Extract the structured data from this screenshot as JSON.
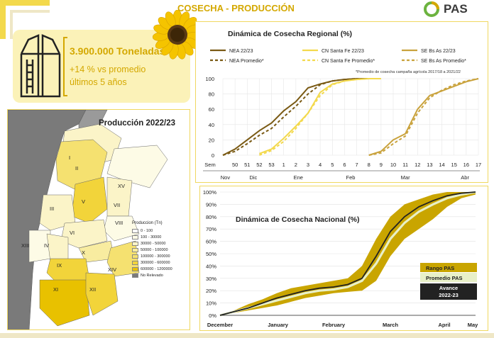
{
  "header": {
    "title": "COSECHA - PRODUCCIÓN",
    "logo_text": "PAS"
  },
  "colors": {
    "brand_yellow": "#d4a800",
    "dark_brown": "#7a5a14",
    "light_yellow": "#f3d94c",
    "mid_gold": "#c9a23c",
    "rango_fill": "#c9a500",
    "promedio_line": "#e8f0c8",
    "avance_line": "#222222"
  },
  "summary": {
    "tonnage": "3.900.000 Toneladas",
    "vs_average_line1": "+14 % vs promedio",
    "vs_average_line2": "últimos 5 años"
  },
  "map": {
    "title": "Producción 2022/23",
    "legend_title": "Produccion (Tn)",
    "legend": [
      {
        "label": "0 - 100",
        "color": "#ffffff"
      },
      {
        "label": "100 - 30000",
        "color": "#fdfbe6"
      },
      {
        "label": "30000 - 50000",
        "color": "#fbf4c8"
      },
      {
        "label": "50000 - 100000",
        "color": "#f8eca0"
      },
      {
        "label": "100000 - 300000",
        "color": "#f5e170"
      },
      {
        "label": "300000 - 600000",
        "color": "#f2d43a"
      },
      {
        "label": "600000 - 1200000",
        "color": "#e8c100"
      },
      {
        "label": "No Relevado",
        "color": "#7a7a7a"
      }
    ],
    "region_labels": [
      "II",
      "I",
      "XV",
      "V",
      "VII",
      "III",
      "VIII",
      "VI",
      "XIII",
      "IV",
      "X",
      "IX",
      "XIV",
      "XI",
      "XII"
    ]
  },
  "regional_chart": {
    "title": "Dinámica de Cosecha Regional (%)",
    "footnote": "*Promedio de cosecha campaña agrícola 2017/18 a 2021/22",
    "legend": [
      {
        "label": "NEA 22/23",
        "color": "#7a5a14",
        "dash": false
      },
      {
        "label": "CN Santa Fe 22/23",
        "color": "#f3d94c",
        "dash": false
      },
      {
        "label": "SE Bs As 22/23",
        "color": "#c9a23c",
        "dash": false
      },
      {
        "label": "NEA Promedio*",
        "color": "#7a5a14",
        "dash": true
      },
      {
        "label": "CN Santa Fe Promedio*",
        "color": "#f3d94c",
        "dash": true
      },
      {
        "label": "SE Bs As Promedio*",
        "color": "#c9a23c",
        "dash": true
      }
    ],
    "y_ticks": [
      "0",
      "20",
      "40",
      "60",
      "80",
      "100"
    ],
    "x_week_ticks": [
      "Sem",
      "50",
      "51",
      "52",
      "53",
      "1",
      "2",
      "3",
      "4",
      "5",
      "6",
      "7",
      "8",
      "9",
      "10",
      "11",
      "12",
      "13",
      "14",
      "15",
      "16",
      "17"
    ],
    "x_month_ticks": [
      "Nov",
      "Dic",
      "Ene",
      "Feb",
      "Mar",
      "Abr"
    ]
  },
  "chart_data": [
    {
      "type": "line",
      "title": "Dinámica de Cosecha Regional (%)",
      "xlabel": "Sem",
      "ylabel": "",
      "ylim": [
        0,
        100
      ],
      "x": [
        49,
        50,
        51,
        52,
        53,
        1,
        2,
        3,
        4,
        5,
        6,
        7,
        8,
        9,
        10,
        11,
        12,
        13,
        14,
        15,
        16,
        17
      ],
      "series": [
        {
          "name": "NEA 22/23",
          "values": [
            0,
            8,
            20,
            32,
            42,
            58,
            70,
            88,
            93,
            97,
            99,
            100,
            100,
            null,
            null,
            null,
            null,
            null,
            null,
            null,
            null,
            null
          ]
        },
        {
          "name": "NEA Promedio*",
          "values": [
            0,
            5,
            15,
            26,
            35,
            50,
            64,
            80,
            92,
            97,
            99,
            100,
            100,
            null,
            null,
            null,
            null,
            null,
            null,
            null,
            null,
            null
          ]
        },
        {
          "name": "CN Santa Fe 22/23",
          "values": [
            null,
            null,
            null,
            2,
            8,
            22,
            38,
            55,
            82,
            93,
            97,
            99,
            100,
            100,
            null,
            null,
            null,
            null,
            null,
            null,
            null,
            null
          ]
        },
        {
          "name": "CN Santa Fe Promedio*",
          "values": [
            null,
            null,
            null,
            0,
            6,
            18,
            35,
            55,
            78,
            92,
            97,
            99,
            100,
            100,
            null,
            null,
            null,
            null,
            null,
            null,
            null,
            null
          ]
        },
        {
          "name": "SE Bs As 22/23",
          "values": [
            null,
            null,
            null,
            null,
            null,
            null,
            null,
            null,
            null,
            null,
            null,
            null,
            0,
            5,
            20,
            28,
            60,
            78,
            84,
            90,
            96,
            100
          ]
        },
        {
          "name": "SE Bs As Promedio*",
          "values": [
            null,
            null,
            null,
            null,
            null,
            null,
            null,
            null,
            null,
            null,
            null,
            null,
            0,
            3,
            15,
            25,
            55,
            75,
            85,
            92,
            97,
            100
          ]
        }
      ]
    },
    {
      "type": "area",
      "title": "Dinámica de Cosecha Nacional (%)",
      "xlabel": "",
      "ylabel": "",
      "ylim": [
        0,
        100
      ],
      "categories": [
        "December",
        "January",
        "February",
        "March",
        "April",
        "May"
      ],
      "y_ticks": [
        "0%",
        "10%",
        "20%",
        "30%",
        "40%",
        "50%",
        "60%",
        "70%",
        "80%",
        "90%",
        "100%"
      ],
      "x": [
        0,
        0.25,
        0.5,
        0.75,
        1.0,
        1.25,
        1.5,
        1.75,
        2.0,
        2.25,
        2.5,
        2.75,
        3.0,
        3.25,
        3.5,
        3.75,
        4.0,
        4.25,
        4.5
      ],
      "series": [
        {
          "name": "Rango PAS",
          "lower": [
            0,
            2,
            4,
            6,
            8,
            11,
            14,
            16,
            18,
            19,
            20,
            28,
            48,
            62,
            70,
            78,
            88,
            95,
            98
          ],
          "upper": [
            0,
            4,
            9,
            13,
            18,
            22,
            24,
            26,
            28,
            30,
            40,
            62,
            80,
            90,
            94,
            98,
            100,
            100,
            100
          ]
        },
        {
          "name": "Promedio PAS",
          "values": [
            0,
            3,
            6,
            9,
            12,
            15,
            18,
            20,
            21,
            23,
            28,
            42,
            62,
            75,
            84,
            90,
            95,
            98,
            100
          ]
        },
        {
          "name": "Avance 2022-23",
          "values": [
            0,
            3,
            6,
            10,
            14,
            17,
            20,
            22,
            23,
            25,
            30,
            48,
            68,
            80,
            88,
            93,
            97,
            99,
            100
          ]
        }
      ],
      "legend": [
        "Rango PAS",
        "Promedio PAS",
        "Avance 2022-23"
      ]
    }
  ],
  "national_chart": {
    "title": "Dinámica de Cosecha Nacional (%)",
    "legend_rango": "Rango PAS",
    "legend_promedio": "Promedio PAS",
    "legend_avance_1": "Avance",
    "legend_avance_2": "2022-23"
  }
}
